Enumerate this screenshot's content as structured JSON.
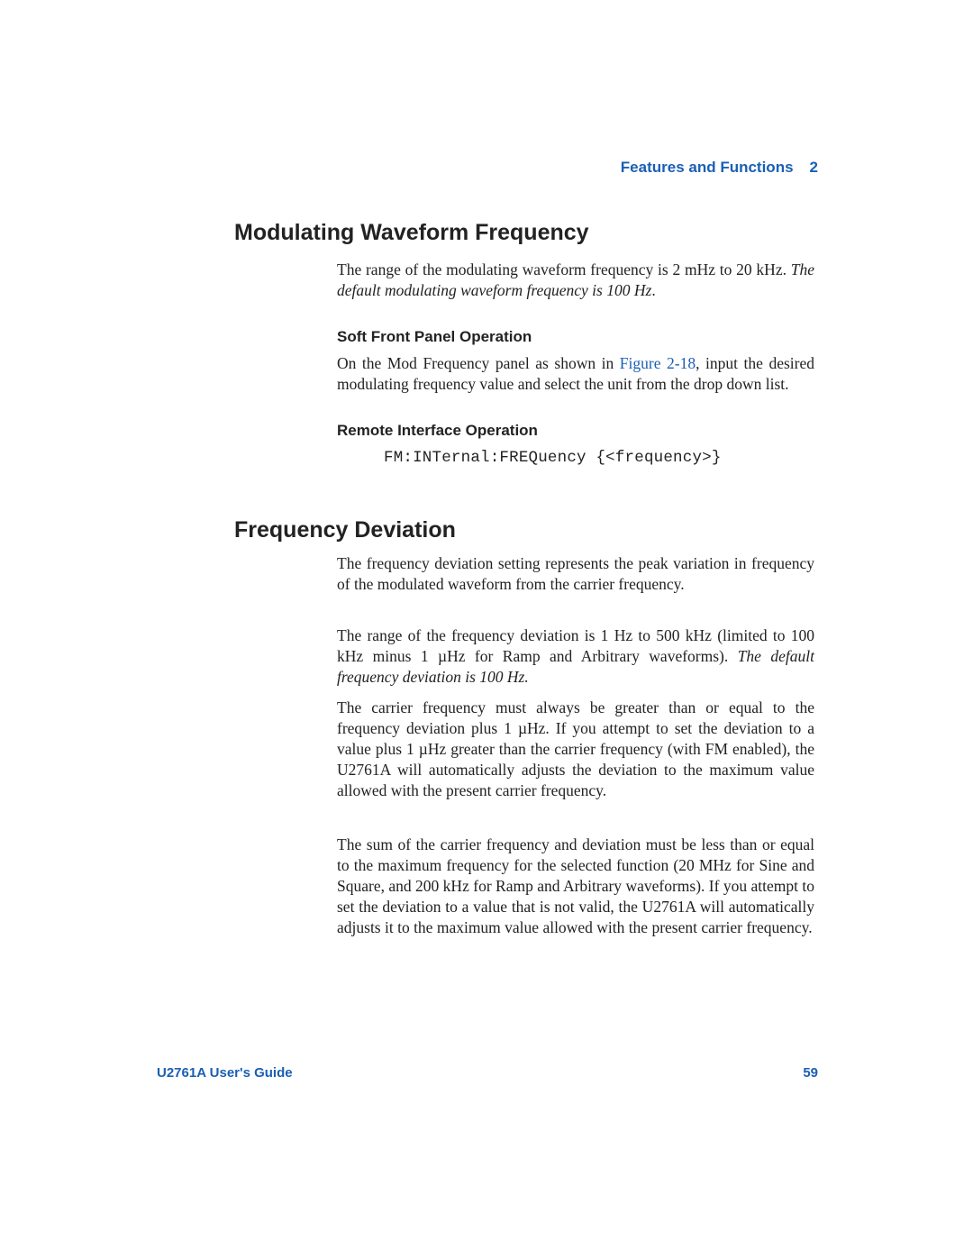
{
  "colors": {
    "accent_blue": "#1a5fb4",
    "text": "#222222",
    "background": "#ffffff"
  },
  "typography": {
    "heading_font": "Arial, Helvetica, sans-serif",
    "body_font": "Georgia, 'Times New Roman', serif",
    "code_font": "'Courier New', Courier, monospace",
    "h1_fontsize_pt": 19,
    "subheading_fontsize_pt": 13,
    "body_fontsize_pt": 13,
    "footer_fontsize_pt": 11
  },
  "header": {
    "section": "Features and Functions",
    "chapter": "2"
  },
  "section1": {
    "title": "Modulating Waveform Frequency",
    "intro_pre": "The range of the modulating waveform frequency is 2 mHz to 20 kHz. ",
    "intro_italic": "The default modulating waveform frequency is 100 Hz",
    "intro_post": ".",
    "sub1": {
      "title": "Soft Front Panel Operation",
      "text_pre": "On the Mod Frequency panel as shown in ",
      "link": "Figure 2-18",
      "text_post": ", input the desired modulating frequency value and select the unit from the drop down list."
    },
    "sub2": {
      "title": "Remote Interface Operation",
      "code": "FM:INTernal:FREQuency {<frequency>}"
    }
  },
  "section2": {
    "title": "Frequency Deviation",
    "p1": "The frequency deviation setting represents the peak variation in frequency of the modulated waveform from the carrier frequency.",
    "p2_pre": "The range of the frequency deviation is 1 Hz to 500 kHz (limited to 100 kHz minus 1 µHz for Ramp and Arbitrary waveforms). ",
    "p2_italic": "The default frequency deviation is 100 Hz.",
    "p3": "The carrier frequency must always be greater than or equal to the frequency deviation plus 1 µHz. If you attempt to set the deviation to a value plus 1 µHz greater than the carrier frequency (with FM enabled), the U2761A will automatically adjusts the deviation to the maximum value allowed with the present carrier frequency.",
    "p4": "The sum of the carrier frequency and deviation must be less than or equal to the maximum frequency for the selected function (20 MHz for Sine and Square, and 200 kHz for Ramp and Arbitrary waveforms). If you attempt to set the deviation to a value that is not valid, the U2761A will automatically adjusts it to the maximum value allowed with the present carrier frequency."
  },
  "footer": {
    "guide": "U2761A User's Guide",
    "page": "59"
  }
}
